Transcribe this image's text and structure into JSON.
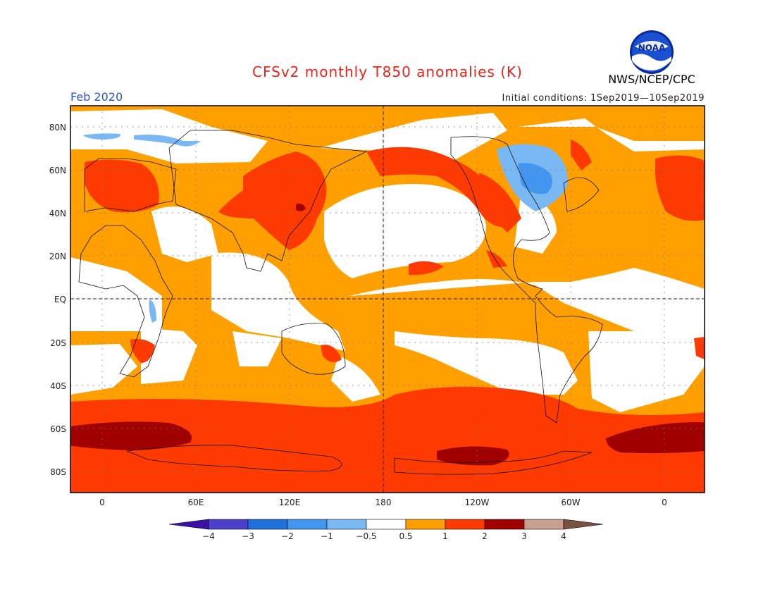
{
  "header": {
    "title": "CFSv2 monthly T850 anomalies (K)",
    "period": "Feb 2020",
    "initial_conditions": "Initial conditions: 1Sep2019—10Sep2019",
    "organization": "NWS/NCEP/CPC",
    "logo_text": "NOAA"
  },
  "map": {
    "lat_labels": [
      "80N",
      "60N",
      "40N",
      "20N",
      "EQ",
      "20S",
      "40S",
      "60S",
      "80S"
    ],
    "lon_labels": [
      "0",
      "60E",
      "120E",
      "180",
      "120W",
      "60W",
      "0"
    ]
  },
  "colorbar": {
    "labels": [
      "−4",
      "−3",
      "−2",
      "−1",
      "−0.5",
      "0.5",
      "1",
      "2",
      "3",
      "4"
    ],
    "colors": [
      "#3d10a8",
      "#4a40cc",
      "#2070dd",
      "#4296ee",
      "#7ab8f4",
      "#ffffff",
      "#ffa000",
      "#ff3a00",
      "#a00000",
      "#c8a090",
      "#7a5040"
    ]
  },
  "colors": {
    "white": "#ffffff",
    "orange": "#ffa000",
    "red": "#ff3a00",
    "darkred": "#a00000",
    "lightblue": "#7ab8f4",
    "blue": "#4296ee"
  }
}
